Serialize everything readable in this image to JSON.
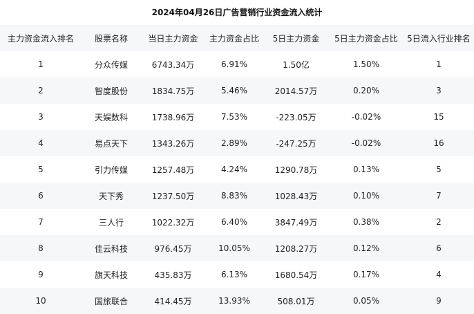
{
  "title": "2024年04月26日广告营销行业资金流入统计",
  "headers": [
    "主力资金流入排名",
    "股票名称",
    "当日主力资金",
    "主力资金占比",
    "5日主力资金",
    "5日主力资金占比",
    "5日流入行业排名"
  ],
  "rows": [
    [
      "1",
      "分众传媒",
      "6743.34万",
      "6.91%",
      "1.50亿",
      "1.50%",
      "1"
    ],
    [
      "2",
      "智度股份",
      "1834.75万",
      "5.46%",
      "2014.57万",
      "0.20%",
      "3"
    ],
    [
      "3",
      "天娱数科",
      "1738.96万",
      "7.53%",
      "-223.05万",
      "-0.02%",
      "15"
    ],
    [
      "4",
      "易点天下",
      "1343.26万",
      "2.89%",
      "-247.25万",
      "-0.02%",
      "16"
    ],
    [
      "5",
      "引力传媒",
      "1257.48万",
      "4.24%",
      "1290.78万",
      "0.13%",
      "5"
    ],
    [
      "6",
      "天下秀",
      "1237.50万",
      "8.83%",
      "1028.43万",
      "0.10%",
      "7"
    ],
    [
      "7",
      "三人行",
      "1022.32万",
      "6.40%",
      "3847.49万",
      "0.38%",
      "2"
    ],
    [
      "8",
      "佳云科技",
      "976.45万",
      "10.05%",
      "1208.27万",
      "0.12%",
      "6"
    ],
    [
      "9",
      "旗天科技",
      "435.83万",
      "6.13%",
      "1680.54万",
      "0.17%",
      "4"
    ],
    [
      "10",
      "国旅联合",
      "414.45万",
      "13.93%",
      "508.01万",
      "0.05%",
      "9"
    ]
  ]
}
